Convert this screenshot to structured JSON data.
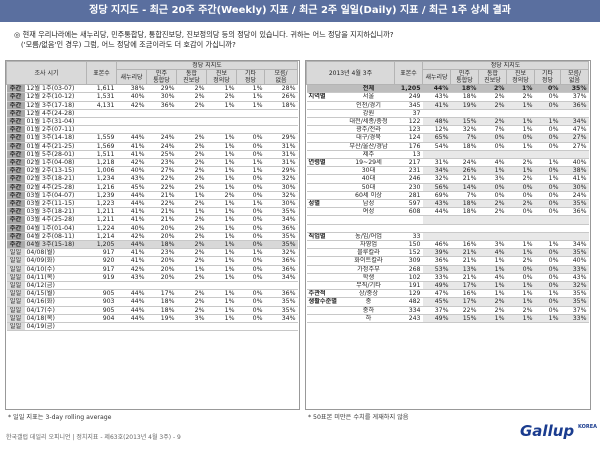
{
  "title": "정당 지지도 - 최근 20주 주간(Weekly) 지표 / 최근 2주 일일(Daily) 지표 / 최근 1주 상세 결과",
  "question": {
    "num": "◎",
    "line1": "현재 우리나라에는 새누리당, 민주통합당, 통합진보당, 진보정의당 등의 정당이 있습니다. 귀하는 어느 정당을 지지하십니까?",
    "line2": "('모름/없음'인 경우) 그럼, 어느 정당에 조금이라도 더 호감이 가십니까?"
  },
  "left": {
    "hdr_period": "조사 시기",
    "hdr_n": "표본수",
    "hdr_group": "정당 지지도",
    "cols": [
      "새누리당",
      "민주\n통합당",
      "통합\n진보당",
      "진보\n정의당",
      "기타\n정당",
      "모름/\n없음"
    ],
    "rows": [
      [
        "주간",
        "12월 1주(03-07)",
        "1,611",
        "38%",
        "29%",
        "2%",
        "1%",
        "1%",
        "28%"
      ],
      [
        "주간",
        "12월 2주(10-12)",
        "1,531",
        "40%",
        "30%",
        "2%",
        "2%",
        "1%",
        "26%"
      ],
      [
        "주간",
        "12월 3주(17-18)",
        "4,131",
        "42%",
        "36%",
        "2%",
        "1%",
        "1%",
        "18%"
      ],
      [
        "주간",
        "12월 4주(24-28)",
        "",
        "",
        "",
        "",
        "",
        "",
        ""
      ],
      [
        "주간",
        "01월 1주(31-04)",
        "",
        "",
        "",
        "",
        "",
        "",
        ""
      ],
      [
        "주간",
        "01월 2주(07-11)",
        "",
        "",
        "",
        "",
        "",
        "",
        ""
      ],
      [
        "주간",
        "01월 3주(14-18)",
        "1,559",
        "44%",
        "24%",
        "2%",
        "1%",
        "0%",
        "29%"
      ],
      [
        "주간",
        "01월 4주(21-25)",
        "1,569",
        "41%",
        "24%",
        "2%",
        "1%",
        "0%",
        "31%"
      ],
      [
        "주간",
        "01월 5주(28-01)",
        "1,511",
        "41%",
        "25%",
        "2%",
        "1%",
        "0%",
        "31%"
      ],
      [
        "주간",
        "02월 1주(04-08)",
        "1,218",
        "42%",
        "23%",
        "2%",
        "1%",
        "1%",
        "31%"
      ],
      [
        "주간",
        "02월 2주(13-15)",
        "1,006",
        "40%",
        "27%",
        "2%",
        "1%",
        "1%",
        "29%"
      ],
      [
        "주간",
        "02월 3주(18-21)",
        "1,234",
        "43%",
        "22%",
        "2%",
        "1%",
        "0%",
        "32%"
      ],
      [
        "주간",
        "02월 4주(25-28)",
        "1,216",
        "45%",
        "22%",
        "2%",
        "1%",
        "0%",
        "30%"
      ],
      [
        "주간",
        "03월 1주(04-07)",
        "1,239",
        "44%",
        "21%",
        "1%",
        "2%",
        "0%",
        "32%"
      ],
      [
        "주간",
        "03월 2주(11-15)",
        "1,223",
        "44%",
        "22%",
        "2%",
        "1%",
        "1%",
        "30%"
      ],
      [
        "주간",
        "03월 3주(18-21)",
        "1,211",
        "41%",
        "21%",
        "1%",
        "1%",
        "0%",
        "35%"
      ],
      [
        "주간",
        "03월 4주(25-28)",
        "1,211",
        "41%",
        "21%",
        "2%",
        "1%",
        "0%",
        "34%"
      ],
      [
        "주간",
        "04월 1주(01-04)",
        "1,224",
        "40%",
        "20%",
        "2%",
        "1%",
        "0%",
        "36%"
      ],
      [
        "주간",
        "04월 2주(08-11)",
        "1,214",
        "42%",
        "20%",
        "2%",
        "1%",
        "0%",
        "35%"
      ],
      [
        "주간",
        "04월 3주(15-18)",
        "1,205",
        "44%",
        "18%",
        "2%",
        "1%",
        "0%",
        "35%"
      ],
      [
        "일일",
        "04/08(월)",
        "917",
        "41%",
        "23%",
        "2%",
        "1%",
        "1%",
        "32%"
      ],
      [
        "일일",
        "04/09(화)",
        "920",
        "41%",
        "20%",
        "2%",
        "1%",
        "0%",
        "36%"
      ],
      [
        "일일",
        "04/10(수)",
        "917",
        "42%",
        "20%",
        "1%",
        "1%",
        "0%",
        "36%"
      ],
      [
        "일일",
        "04/11(목)",
        "919",
        "43%",
        "20%",
        "2%",
        "1%",
        "0%",
        "34%"
      ],
      [
        "일일",
        "04/12(금)",
        "",
        "",
        "",
        "",
        "",
        "",
        ""
      ],
      [
        "일일",
        "04/15(월)",
        "905",
        "44%",
        "17%",
        "2%",
        "1%",
        "0%",
        "36%"
      ],
      [
        "일일",
        "04/16(화)",
        "903",
        "44%",
        "18%",
        "2%",
        "1%",
        "0%",
        "35%"
      ],
      [
        "일일",
        "04/17(수)",
        "905",
        "44%",
        "18%",
        "2%",
        "1%",
        "0%",
        "35%"
      ],
      [
        "일일",
        "04/18(목)",
        "904",
        "44%",
        "19%",
        "3%",
        "1%",
        "0%",
        "34%"
      ],
      [
        "일일",
        "04/19(금)",
        "",
        "",
        "",
        "",
        "",
        "",
        ""
      ]
    ],
    "note": "* 일일 지표는 3-day rolling average"
  },
  "right": {
    "hdr_period": "2013년 4월 3주",
    "hdr_n": "표본수",
    "hdr_group": "정당 지지도",
    "cols": [
      "새누리당",
      "민주\n통합당",
      "통합\n진보당",
      "진보\n정의당",
      "기타\n정당",
      "모름/\n없음"
    ],
    "rows": [
      [
        "",
        "전체",
        "1,205",
        "44%",
        "18%",
        "2%",
        "1%",
        "0%",
        "35%"
      ],
      [
        "지역별",
        "서울",
        "249",
        "43%",
        "18%",
        "2%",
        "2%",
        "0%",
        "37%"
      ],
      [
        "",
        "인천/경기",
        "345",
        "41%",
        "19%",
        "2%",
        "1%",
        "0%",
        "36%"
      ],
      [
        "",
        "강원",
        "37",
        "",
        "",
        "",
        "",
        "",
        ""
      ],
      [
        "",
        "대전/세종/충청",
        "122",
        "48%",
        "15%",
        "2%",
        "1%",
        "1%",
        "34%"
      ],
      [
        "",
        "광주/전라",
        "123",
        "12%",
        "32%",
        "7%",
        "1%",
        "0%",
        "47%"
      ],
      [
        "",
        "대구/경북",
        "124",
        "65%",
        "7%",
        "0%",
        "0%",
        "0%",
        "27%"
      ],
      [
        "",
        "부산/울산/경남",
        "176",
        "54%",
        "18%",
        "0%",
        "1%",
        "0%",
        "27%"
      ],
      [
        "",
        "제주",
        "13",
        "",
        "",
        "",
        "",
        "",
        ""
      ],
      [
        "연령별",
        "19~29세",
        "217",
        "31%",
        "24%",
        "4%",
        "2%",
        "1%",
        "40%"
      ],
      [
        "",
        "30대",
        "231",
        "34%",
        "26%",
        "1%",
        "1%",
        "0%",
        "38%"
      ],
      [
        "",
        "40대",
        "246",
        "32%",
        "21%",
        "3%",
        "2%",
        "1%",
        "41%"
      ],
      [
        "",
        "50대",
        "230",
        "56%",
        "14%",
        "0%",
        "0%",
        "0%",
        "30%"
      ],
      [
        "",
        "60세 이상",
        "281",
        "69%",
        "7%",
        "0%",
        "0%",
        "0%",
        "24%"
      ],
      [
        "성별",
        "남성",
        "597",
        "43%",
        "18%",
        "2%",
        "2%",
        "0%",
        "35%"
      ],
      [
        "",
        "여성",
        "608",
        "44%",
        "18%",
        "2%",
        "0%",
        "0%",
        "36%"
      ],
      [
        "",
        "",
        "",
        "",
        "",
        "",
        "",
        "",
        ""
      ],
      [
        "",
        "",
        "",
        "",
        "",
        "",
        "",
        "",
        ""
      ],
      [
        "직업별",
        "농/임/어업",
        "33",
        "",
        "",
        "",
        "",
        "",
        ""
      ],
      [
        "",
        "자영업",
        "150",
        "46%",
        "16%",
        "3%",
        "1%",
        "1%",
        "34%"
      ],
      [
        "",
        "블루칼라",
        "152",
        "39%",
        "21%",
        "4%",
        "1%",
        "0%",
        "35%"
      ],
      [
        "",
        "화이트칼라",
        "309",
        "36%",
        "21%",
        "1%",
        "2%",
        "0%",
        "40%"
      ],
      [
        "",
        "가정주부",
        "268",
        "53%",
        "13%",
        "1%",
        "0%",
        "0%",
        "33%"
      ],
      [
        "",
        "학생",
        "102",
        "33%",
        "21%",
        "4%",
        "0%",
        "0%",
        "43%"
      ],
      [
        "",
        "무직/기타",
        "191",
        "49%",
        "17%",
        "1%",
        "1%",
        "0%",
        "32%"
      ],
      [
        "주관적",
        "상/중상",
        "129",
        "47%",
        "16%",
        "1%",
        "1%",
        "1%",
        "35%"
      ],
      [
        "생활수준별",
        "중",
        "482",
        "45%",
        "17%",
        "2%",
        "1%",
        "0%",
        "35%"
      ],
      [
        "",
        "중하",
        "334",
        "37%",
        "22%",
        "2%",
        "2%",
        "0%",
        "37%"
      ],
      [
        "",
        "하",
        "243",
        "49%",
        "15%",
        "1%",
        "1%",
        "1%",
        "33%"
      ]
    ],
    "note": "* 50표본 미만은 수치를 게재하지 않음"
  },
  "footer": "한국갤럽 데일리 오피니언 | 정치지표 - 제63호(2013년 4월 3주) - 9",
  "logo": "Gallup",
  "logo_sub": "KOREA"
}
